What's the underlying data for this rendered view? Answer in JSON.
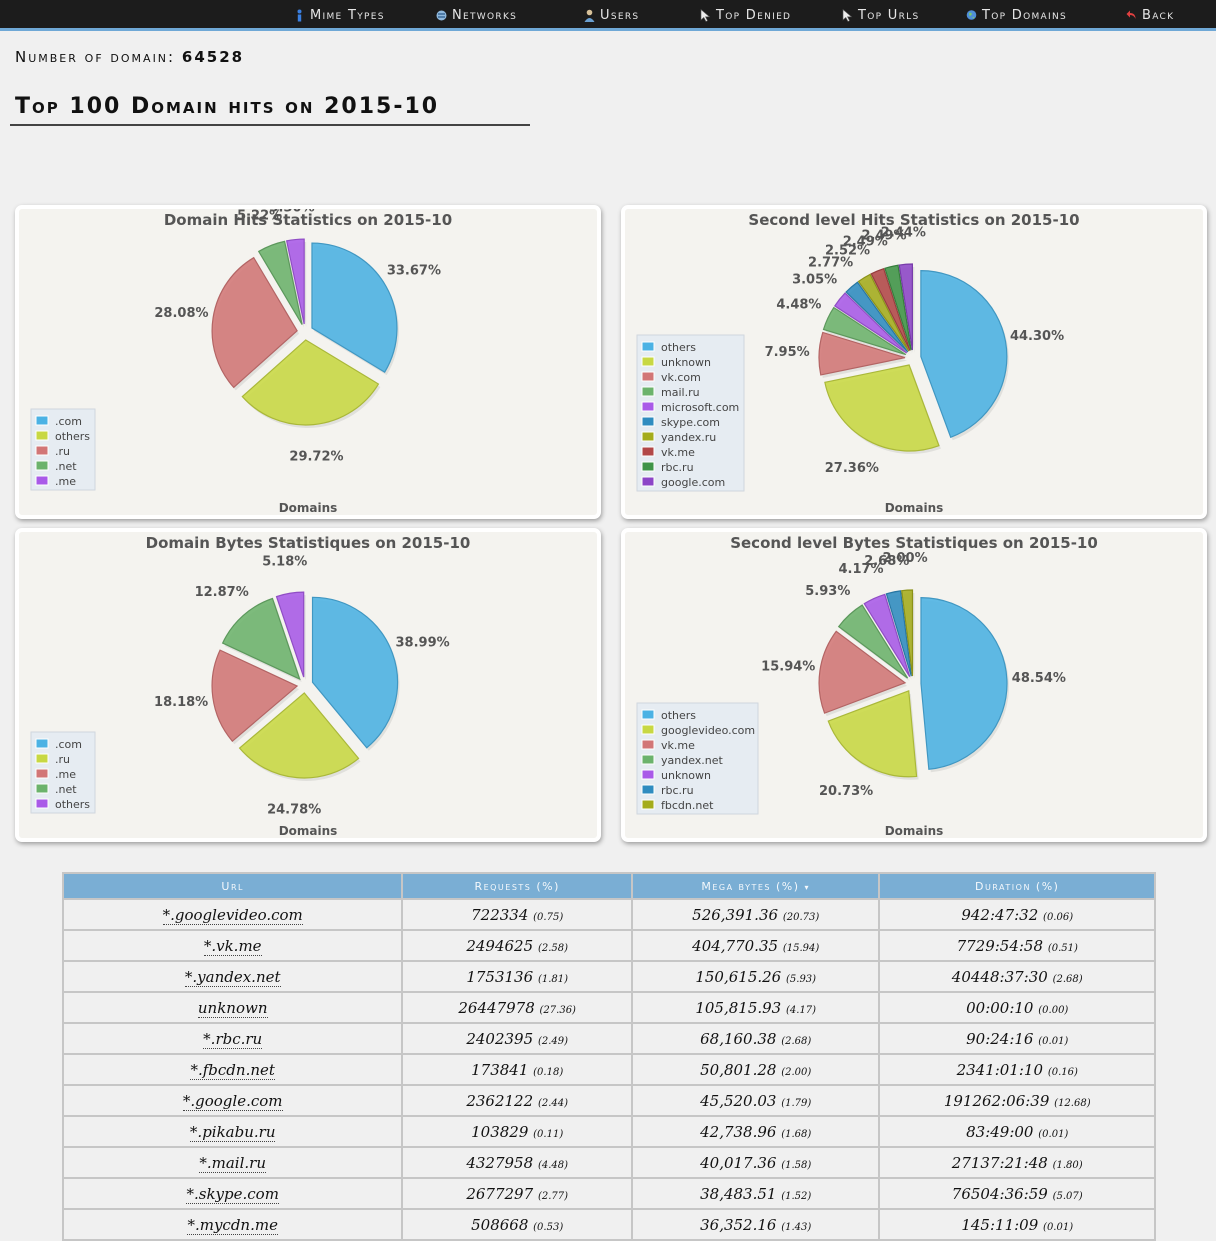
{
  "nav": [
    {
      "label": "Mime Types",
      "icon": "info-icon"
    },
    {
      "label": "Networks",
      "icon": "network-icon"
    },
    {
      "label": "Users",
      "icon": "user-icon"
    },
    {
      "label": "Top Denied",
      "icon": "cursor-icon"
    },
    {
      "label": "Top Urls",
      "icon": "cursor-icon"
    },
    {
      "label": "Top Domains",
      "icon": "globe-icon"
    },
    {
      "label": "Back",
      "icon": "back-arrow-icon"
    }
  ],
  "summary": {
    "label": "Number of domain:",
    "value": "64528"
  },
  "page_title": "Top 100 Domain hits on 2015-10",
  "colors": {
    "accent": "#7aaed4",
    "navbar": "#1c1c1c",
    "legend_bg": "#e6ecf2",
    "panel_bg": "#f4f3ef"
  },
  "chart_data": [
    {
      "type": "pie",
      "title": "Domain Hits Statistics on 2015-10",
      "xlabel": "Domains",
      "legend_position": "bottom-left",
      "slices": [
        {
          "label": ".com",
          "value": 33.67,
          "color": "#4bb2e4"
        },
        {
          "label": "others",
          "value": 29.72,
          "color": "#c8d843"
        },
        {
          "label": ".ru",
          "value": 28.08,
          "color": "#d27676"
        },
        {
          "label": ".net",
          "value": 5.22,
          "color": "#6cb36c"
        },
        {
          "label": ".me",
          "value": 3.3,
          "color": "#a95ae8"
        }
      ]
    },
    {
      "type": "pie",
      "title": "Second level Hits Statistics on 2015-10",
      "xlabel": "Domains",
      "legend_position": "left",
      "slices": [
        {
          "label": "others",
          "value": 44.3,
          "color": "#4bb2e4"
        },
        {
          "label": "unknown",
          "value": 27.36,
          "color": "#c8d843"
        },
        {
          "label": "vk.com",
          "value": 7.95,
          "color": "#d27676"
        },
        {
          "label": "mail.ru",
          "value": 4.48,
          "color": "#6cb36c"
        },
        {
          "label": "microsoft.com",
          "value": 3.05,
          "color": "#a95ae8"
        },
        {
          "label": "skype.com",
          "value": 2.77,
          "color": "#2f8cc0"
        },
        {
          "label": "yandex.ru",
          "value": 2.52,
          "color": "#a4ac1c"
        },
        {
          "label": "vk.me",
          "value": 2.49,
          "color": "#b24848"
        },
        {
          "label": "rbc.ru",
          "value": 2.49,
          "color": "#3f9447"
        },
        {
          "label": "google.com",
          "value": 2.44,
          "color": "#8c45c7"
        }
      ]
    },
    {
      "type": "pie",
      "title": "Domain Bytes Statistiques on 2015-10",
      "xlabel": "Domains",
      "legend_position": "bottom-left",
      "slices": [
        {
          "label": ".com",
          "value": 38.99,
          "color": "#4bb2e4"
        },
        {
          "label": ".ru",
          "value": 24.78,
          "color": "#c8d843"
        },
        {
          "label": ".me",
          "value": 18.18,
          "color": "#d27676"
        },
        {
          "label": ".net",
          "value": 12.87,
          "color": "#6cb36c"
        },
        {
          "label": "others",
          "value": 5.18,
          "color": "#a95ae8"
        }
      ]
    },
    {
      "type": "pie",
      "title": "Second level Bytes Statistiques on 2015-10",
      "xlabel": "Domains",
      "legend_position": "left",
      "slices": [
        {
          "label": "others",
          "value": 48.54,
          "color": "#4bb2e4"
        },
        {
          "label": "googlevideo.com",
          "value": 20.73,
          "color": "#c8d843"
        },
        {
          "label": "vk.me",
          "value": 15.94,
          "color": "#d27676"
        },
        {
          "label": "yandex.net",
          "value": 5.93,
          "color": "#6cb36c"
        },
        {
          "label": "unknown",
          "value": 4.17,
          "color": "#a95ae8"
        },
        {
          "label": "rbc.ru",
          "value": 2.68,
          "color": "#2f8cc0"
        },
        {
          "label": "fbcdn.net",
          "value": 2.0,
          "color": "#a4ac1c"
        }
      ]
    }
  ],
  "table": {
    "columns": [
      "Url",
      "Requests (%)",
      "Mega bytes (%)",
      "Duration (%)"
    ],
    "sort_indicator": "▾",
    "rows": [
      {
        "url": "*.googlevideo.com",
        "requests": "722334",
        "requests_pct": "(0.75)",
        "mb": "526,391.36",
        "mb_pct": "(20.73)",
        "duration": "942:47:32",
        "duration_pct": "(0.06)"
      },
      {
        "url": "*.vk.me",
        "requests": "2494625",
        "requests_pct": "(2.58)",
        "mb": "404,770.35",
        "mb_pct": "(15.94)",
        "duration": "7729:54:58",
        "duration_pct": "(0.51)"
      },
      {
        "url": "*.yandex.net",
        "requests": "1753136",
        "requests_pct": "(1.81)",
        "mb": "150,615.26",
        "mb_pct": "(5.93)",
        "duration": "40448:37:30",
        "duration_pct": "(2.68)"
      },
      {
        "url": "unknown",
        "requests": "26447978",
        "requests_pct": "(27.36)",
        "mb": "105,815.93",
        "mb_pct": "(4.17)",
        "duration": "00:00:10",
        "duration_pct": "(0.00)"
      },
      {
        "url": "*.rbc.ru",
        "requests": "2402395",
        "requests_pct": "(2.49)",
        "mb": "68,160.38",
        "mb_pct": "(2.68)",
        "duration": "90:24:16",
        "duration_pct": "(0.01)"
      },
      {
        "url": "*.fbcdn.net",
        "requests": "173841",
        "requests_pct": "(0.18)",
        "mb": "50,801.28",
        "mb_pct": "(2.00)",
        "duration": "2341:01:10",
        "duration_pct": "(0.16)"
      },
      {
        "url": "*.google.com",
        "requests": "2362122",
        "requests_pct": "(2.44)",
        "mb": "45,520.03",
        "mb_pct": "(1.79)",
        "duration": "191262:06:39",
        "duration_pct": "(12.68)"
      },
      {
        "url": "*.pikabu.ru",
        "requests": "103829",
        "requests_pct": "(0.11)",
        "mb": "42,738.96",
        "mb_pct": "(1.68)",
        "duration": "83:49:00",
        "duration_pct": "(0.01)"
      },
      {
        "url": "*.mail.ru",
        "requests": "4327958",
        "requests_pct": "(4.48)",
        "mb": "40,017.36",
        "mb_pct": "(1.58)",
        "duration": "27137:21:48",
        "duration_pct": "(1.80)"
      },
      {
        "url": "*.skype.com",
        "requests": "2677297",
        "requests_pct": "(2.77)",
        "mb": "38,483.51",
        "mb_pct": "(1.52)",
        "duration": "76504:36:59",
        "duration_pct": "(5.07)"
      },
      {
        "url": "*.mycdn.me",
        "requests": "508668",
        "requests_pct": "(0.53)",
        "mb": "36,352.16",
        "mb_pct": "(1.43)",
        "duration": "145:11:09",
        "duration_pct": "(0.01)"
      }
    ]
  }
}
